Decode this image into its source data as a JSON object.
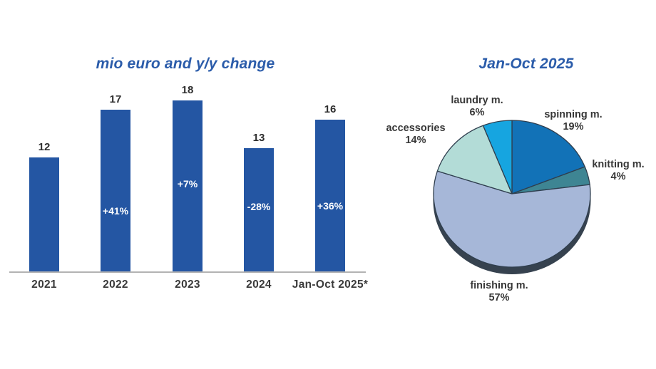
{
  "chart_data": [
    {
      "type": "bar",
      "title": "mio euro and y/y change",
      "categories": [
        "2021",
        "2022",
        "2023",
        "2024",
        "Jan-Oct 2025*"
      ],
      "values": [
        12,
        17,
        18,
        13,
        16
      ],
      "value_labels": [
        "12",
        "17",
        "18",
        "13",
        "16"
      ],
      "pct_change_labels": [
        null,
        "+41%",
        "+7%",
        "-28%",
        "+36%"
      ],
      "xlabel": "",
      "ylabel": "",
      "ylim": [
        0,
        18
      ],
      "grid": false,
      "legend": "none",
      "bar_color": "#2456a3",
      "pct_label_color": "#ffffff",
      "title_color": "#2b5caa"
    },
    {
      "type": "pie",
      "title": "Jan-Oct 2025",
      "start_angle_deg": 0,
      "direction": "clockwise",
      "slices": [
        {
          "label": "spinning m.",
          "pct": 19,
          "pct_label": "19%",
          "color": "#1272b7"
        },
        {
          "label": "knitting m.",
          "pct": 4,
          "pct_label": "4%",
          "color": "#3e8593"
        },
        {
          "label": "finishing m.",
          "pct": 57,
          "pct_label": "57%",
          "color": "#a6b7d8"
        },
        {
          "label": "accessories",
          "pct": 14,
          "pct_label": "14%",
          "color": "#b3dcd7"
        },
        {
          "label": "laundry m.",
          "pct": 6,
          "pct_label": "6%",
          "color": "#16a5e0"
        }
      ],
      "outline_color": "#2f3e4e",
      "base_shadow_color": "#36424f",
      "title_color": "#2b5caa",
      "label_color": "#383838"
    }
  ]
}
